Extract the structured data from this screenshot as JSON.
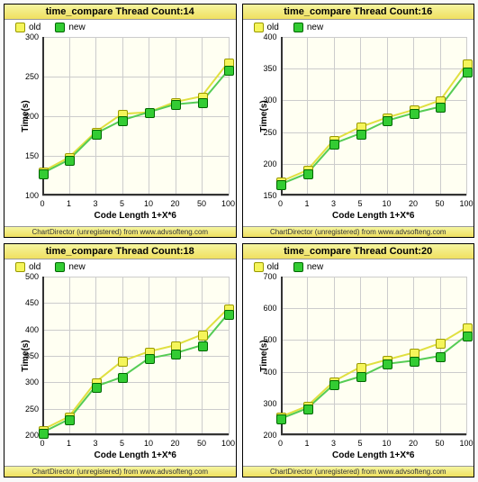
{
  "global": {
    "xlabel": "Code Length 1+X*6",
    "ylabel": "Time(s)",
    "categories": [
      "0",
      "1",
      "3",
      "5",
      "10",
      "20",
      "50",
      "100"
    ],
    "watermark": "ChartDirector (unregistered) from www.advsofteng.com",
    "legend": {
      "old_label": "old",
      "new_label": "new"
    },
    "colors": {
      "bg": "#fffff2",
      "grid": "#cccccc",
      "axis": "#333333",
      "old_line": "#e0e040",
      "old_fill": "#f5f55a",
      "old_border": "#999900",
      "new_line": "#55cc55",
      "new_fill": "#33cc33",
      "new_border": "#006600",
      "title_bg": "#f0e060"
    },
    "marker_size": 9,
    "line_width": 2
  },
  "charts": [
    {
      "id": "c14",
      "title": "time_compare Thread Count:14",
      "ymin": 100,
      "ymax": 300,
      "ystep": 50,
      "series_old": [
        130,
        148,
        180,
        203,
        205,
        218,
        225,
        268
      ],
      "series_new": [
        128,
        145,
        178,
        195,
        205,
        215,
        218,
        258
      ]
    },
    {
      "id": "c16",
      "title": "time_compare Thread Count:16",
      "ymin": 150,
      "ymax": 400,
      "ystep": 50,
      "series_old": [
        172,
        190,
        238,
        258,
        273,
        285,
        300,
        358
      ],
      "series_new": [
        168,
        185,
        232,
        248,
        268,
        280,
        290,
        345
      ]
    },
    {
      "id": "c18",
      "title": "time_compare Thread Count:18",
      "ymin": 200,
      "ymax": 500,
      "ystep": 50,
      "series_old": [
        210,
        235,
        300,
        340,
        358,
        370,
        390,
        440
      ],
      "series_new": [
        205,
        230,
        292,
        310,
        345,
        355,
        370,
        430
      ]
    },
    {
      "id": "c20",
      "title": "time_compare Thread Count:20",
      "ymin": 200,
      "ymax": 700,
      "ystep": 100,
      "series_old": [
        258,
        292,
        370,
        415,
        438,
        460,
        490,
        540
      ],
      "series_new": [
        252,
        285,
        360,
        385,
        425,
        435,
        450,
        515
      ]
    }
  ]
}
